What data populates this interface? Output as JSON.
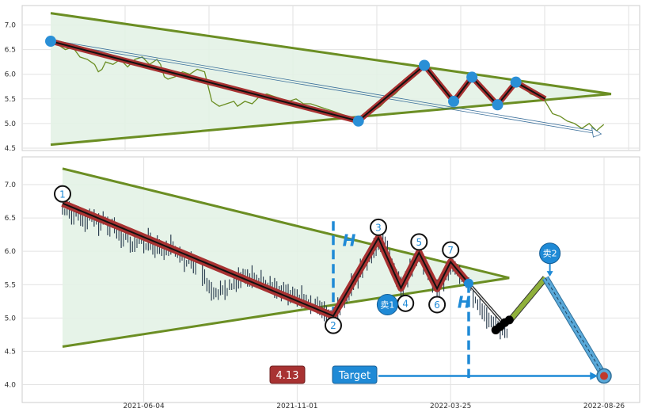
{
  "chart_data": [
    {
      "type": "line",
      "panel": "top",
      "ylim": [
        4.45,
        7.3
      ],
      "y_ticks": [
        "4.5",
        "5.0",
        "5.5",
        "6.0",
        "6.5",
        "7.0"
      ],
      "grid": true,
      "price_series": [
        [
          0,
          6.67
        ],
        [
          2,
          6.6
        ],
        [
          4,
          6.5
        ],
        [
          6,
          6.55
        ],
        [
          8,
          6.35
        ],
        [
          10,
          6.3
        ],
        [
          12,
          6.2
        ],
        [
          13,
          6.05
        ],
        [
          14,
          6.1
        ],
        [
          15,
          6.25
        ],
        [
          17,
          6.2
        ],
        [
          19,
          6.3
        ],
        [
          21,
          6.15
        ],
        [
          23,
          6.3
        ],
        [
          25,
          6.35
        ],
        [
          27,
          6.2
        ],
        [
          29,
          6.3
        ],
        [
          30,
          6.2
        ],
        [
          31,
          5.95
        ],
        [
          32,
          5.9
        ],
        [
          34,
          5.95
        ],
        [
          36,
          6.05
        ],
        [
          38,
          6.0
        ],
        [
          40,
          6.1
        ],
        [
          42,
          6.05
        ],
        [
          43,
          5.75
        ],
        [
          44,
          5.45
        ],
        [
          46,
          5.35
        ],
        [
          48,
          5.4
        ],
        [
          50,
          5.45
        ],
        [
          51,
          5.35
        ],
        [
          53,
          5.45
        ],
        [
          55,
          5.4
        ],
        [
          57,
          5.55
        ],
        [
          59,
          5.6
        ],
        [
          61,
          5.55
        ],
        [
          63,
          5.5
        ],
        [
          65,
          5.45
        ],
        [
          67,
          5.5
        ],
        [
          69,
          5.4
        ],
        [
          71,
          5.4
        ],
        [
          73,
          5.35
        ],
        [
          75,
          5.3
        ],
        [
          77,
          5.25
        ],
        [
          79,
          5.2
        ],
        [
          81,
          5.15
        ],
        [
          83,
          5.1
        ],
        [
          84,
          5.05
        ],
        [
          86,
          5.15
        ],
        [
          88,
          5.25
        ],
        [
          90,
          5.35
        ],
        [
          92,
          5.5
        ],
        [
          94,
          5.6
        ],
        [
          96,
          5.75
        ],
        [
          98,
          5.9
        ],
        [
          100,
          6.05
        ],
        [
          102,
          6.15
        ],
        [
          104,
          6.05
        ],
        [
          106,
          5.85
        ],
        [
          108,
          5.65
        ],
        [
          110,
          5.45
        ],
        [
          111,
          5.6
        ],
        [
          113,
          5.8
        ],
        [
          115,
          5.95
        ],
        [
          117,
          5.8
        ],
        [
          119,
          5.6
        ],
        [
          121,
          5.45
        ],
        [
          122,
          5.4
        ],
        [
          123,
          5.55
        ],
        [
          125,
          5.7
        ],
        [
          127,
          5.85
        ],
        [
          129,
          5.75
        ],
        [
          131,
          5.6
        ],
        [
          133,
          5.55
        ],
        [
          135,
          5.45
        ],
        [
          137,
          5.2
        ],
        [
          139,
          5.15
        ],
        [
          141,
          5.05
        ],
        [
          143,
          5.0
        ],
        [
          145,
          4.9
        ],
        [
          147,
          5.0
        ],
        [
          149,
          4.85
        ],
        [
          150,
          4.92
        ],
        [
          151,
          4.98
        ]
      ],
      "wave_points": [
        [
          0,
          6.67
        ],
        [
          84,
          5.05
        ],
        [
          102,
          6.18
        ],
        [
          110,
          5.45
        ],
        [
          115,
          5.94
        ],
        [
          122,
          5.38
        ],
        [
          127,
          5.84
        ],
        [
          135,
          5.5
        ]
      ],
      "marked_points": [
        [
          0,
          6.67
        ],
        [
          84,
          5.05
        ],
        [
          102,
          6.18
        ],
        [
          110,
          5.45
        ],
        [
          115,
          5.94
        ],
        [
          122,
          5.38
        ],
        [
          127,
          5.84
        ]
      ],
      "triangle": {
        "upper": [
          [
            0,
            7.24
          ],
          [
            153,
            5.6
          ]
        ],
        "lower": [
          [
            0,
            4.57
          ],
          [
            153,
            5.6
          ]
        ]
      },
      "trend_arrow": [
        [
          0,
          6.67
        ],
        [
          149,
          4.82
        ]
      ],
      "colors": {
        "price": "#6b8e23",
        "wave": "#a83232",
        "wave_core": "#111111",
        "marker": "#2a8fd6",
        "triangle": "#6b8e23",
        "fill": "#e3f2e6",
        "arrow": "#3a6f9b"
      }
    },
    {
      "type": "line",
      "panel": "bottom",
      "ylim": [
        3.85,
        7.5
      ],
      "y_ticks": [
        "4.0",
        "4.5",
        "5.0",
        "5.5",
        "6.0",
        "6.5",
        "7.0"
      ],
      "x_ticks": [
        {
          "x": 18,
          "label": "2021-06-04"
        },
        {
          "x": 52,
          "label": "2021-11-01"
        },
        {
          "x": 86,
          "label": "2022-03-25"
        },
        {
          "x": 120,
          "label": "2022-08-26"
        }
      ],
      "grid": true,
      "price_bars": [
        [
          0,
          6.62
        ],
        [
          1,
          6.65
        ],
        [
          2,
          6.55
        ],
        [
          3,
          6.6
        ],
        [
          4,
          6.5
        ],
        [
          5,
          6.45
        ],
        [
          6,
          6.55
        ],
        [
          7,
          6.5
        ],
        [
          8,
          6.4
        ],
        [
          9,
          6.5
        ],
        [
          10,
          6.38
        ],
        [
          11,
          6.42
        ],
        [
          12,
          6.3
        ],
        [
          13,
          6.2
        ],
        [
          14,
          6.25
        ],
        [
          15,
          6.1
        ],
        [
          16,
          6.15
        ],
        [
          17,
          6.2
        ],
        [
          18,
          6.1
        ],
        [
          19,
          6.18
        ],
        [
          20,
          6.05
        ],
        [
          21,
          6.1
        ],
        [
          22,
          6.0
        ],
        [
          23,
          6.05
        ],
        [
          24,
          6.1
        ],
        [
          25,
          6.0
        ],
        [
          26,
          5.95
        ],
        [
          27,
          5.85
        ],
        [
          28,
          5.9
        ],
        [
          29,
          5.8
        ],
        [
          31,
          5.65
        ],
        [
          32,
          5.5
        ],
        [
          33,
          5.4
        ],
        [
          34,
          5.38
        ],
        [
          35,
          5.45
        ],
        [
          36,
          5.42
        ],
        [
          37,
          5.5
        ],
        [
          38,
          5.55
        ],
        [
          39,
          5.6
        ],
        [
          40,
          5.65
        ],
        [
          41,
          5.6
        ],
        [
          42,
          5.62
        ],
        [
          43,
          5.55
        ],
        [
          44,
          5.58
        ],
        [
          45,
          5.5
        ],
        [
          46,
          5.52
        ],
        [
          47,
          5.45
        ],
        [
          48,
          5.4
        ],
        [
          49,
          5.42
        ],
        [
          50,
          5.35
        ],
        [
          51,
          5.38
        ],
        [
          52,
          5.3
        ],
        [
          53,
          5.32
        ],
        [
          54,
          5.25
        ],
        [
          55,
          5.2
        ],
        [
          56,
          5.22
        ],
        [
          57,
          5.15
        ],
        [
          58,
          5.1
        ],
        [
          59,
          5.05
        ],
        [
          60,
          5.05
        ],
        [
          61,
          5.15
        ],
        [
          62,
          5.25
        ],
        [
          63,
          5.35
        ],
        [
          64,
          5.5
        ],
        [
          65,
          5.6
        ],
        [
          66,
          5.75
        ],
        [
          67,
          5.85
        ],
        [
          68,
          5.95
        ],
        [
          69,
          6.05
        ],
        [
          70,
          6.1
        ],
        [
          71,
          6.18
        ],
        [
          72,
          6.0
        ],
        [
          73,
          5.8
        ],
        [
          74,
          5.6
        ],
        [
          75,
          5.45
        ],
        [
          76,
          5.6
        ],
        [
          77,
          5.75
        ],
        [
          78,
          5.9
        ],
        [
          79,
          5.95
        ],
        [
          80,
          5.8
        ],
        [
          81,
          5.65
        ],
        [
          82,
          5.5
        ],
        [
          83,
          5.42
        ],
        [
          84,
          5.55
        ],
        [
          85,
          5.7
        ],
        [
          86,
          5.82
        ],
        [
          87,
          5.75
        ],
        [
          88,
          5.65
        ],
        [
          89,
          5.55
        ],
        [
          90,
          5.5
        ],
        [
          91,
          5.3
        ],
        [
          92,
          5.2
        ],
        [
          93,
          5.1
        ],
        [
          94,
          5.0
        ],
        [
          95,
          4.95
        ],
        [
          96,
          4.9
        ],
        [
          97,
          4.85
        ],
        [
          98,
          4.8
        ]
      ],
      "wave_points": [
        [
          0,
          6.72
        ],
        [
          60,
          5.03
        ],
        [
          70,
          6.2
        ],
        [
          75,
          5.45
        ],
        [
          79,
          5.98
        ],
        [
          83,
          5.44
        ],
        [
          86,
          5.84
        ],
        [
          90,
          5.52
        ]
      ],
      "wave_labels": [
        {
          "label": "1",
          "x": 0,
          "y": 6.86
        },
        {
          "label": "2",
          "x": 60,
          "y": 4.89
        },
        {
          "label": "3",
          "x": 70,
          "y": 6.36
        },
        {
          "label": "4",
          "x": 76,
          "y": 5.22
        },
        {
          "label": "5",
          "x": 79,
          "y": 6.14
        },
        {
          "label": "6",
          "x": 83,
          "y": 5.2
        },
        {
          "label": "7",
          "x": 86,
          "y": 6.02
        }
      ],
      "sell_labels": [
        {
          "label": "卖1",
          "x": 72,
          "y": 5.2
        },
        {
          "label": "卖2",
          "x": 108,
          "y": 5.97
        }
      ],
      "h_labels": [
        {
          "label": "H",
          "x": 63.5,
          "y": 6.08
        },
        {
          "label": "H",
          "x": 89,
          "y": 5.15
        }
      ],
      "height_markers": [
        {
          "x": 60,
          "y_from": 6.45,
          "y_to": 5.03
        },
        {
          "x": 90,
          "y_from": 5.52,
          "y_to": 4.1
        }
      ],
      "triangle": {
        "upper": [
          [
            0,
            7.24
          ],
          [
            99,
            5.6
          ]
        ],
        "lower": [
          [
            0,
            4.57
          ],
          [
            99,
            5.6
          ]
        ]
      },
      "projection": {
        "to_black": [
          [
            90,
            5.52
          ],
          [
            98,
            4.9
          ]
        ],
        "bounce": [
          [
            99,
            4.95
          ],
          [
            107,
            5.6
          ]
        ],
        "target_path": [
          [
            107,
            5.6
          ],
          [
            120,
            4.13
          ]
        ],
        "target_point": [
          120,
          4.13
        ],
        "sell2_pointer": [
          [
            108,
            5.83
          ],
          [
            108,
            5.62
          ]
        ]
      },
      "black_dots": [
        [
          96,
          4.82
        ],
        [
          97,
          4.87
        ],
        [
          98,
          4.93
        ],
        [
          99,
          4.97
        ]
      ],
      "target_value": "4.13",
      "target_label": "Target",
      "target_arrow": {
        "y": 4.13,
        "x_from": 70,
        "x_to": 119
      },
      "colors": {
        "price": "#2c3e50",
        "wave": "#a83232",
        "wave_core": "#111111",
        "triangle": "#6b8e23",
        "fill": "#e3f2e6",
        "dash": "#1f8ad6",
        "label_text": "#1f8ad6",
        "value_badge": "#a83232",
        "target_badge": "#1f8ad6",
        "bounce": "#8fb03a",
        "target_path": "#5aa9d9",
        "sell": "#1f8ad6",
        "dots": "#000000"
      }
    }
  ]
}
